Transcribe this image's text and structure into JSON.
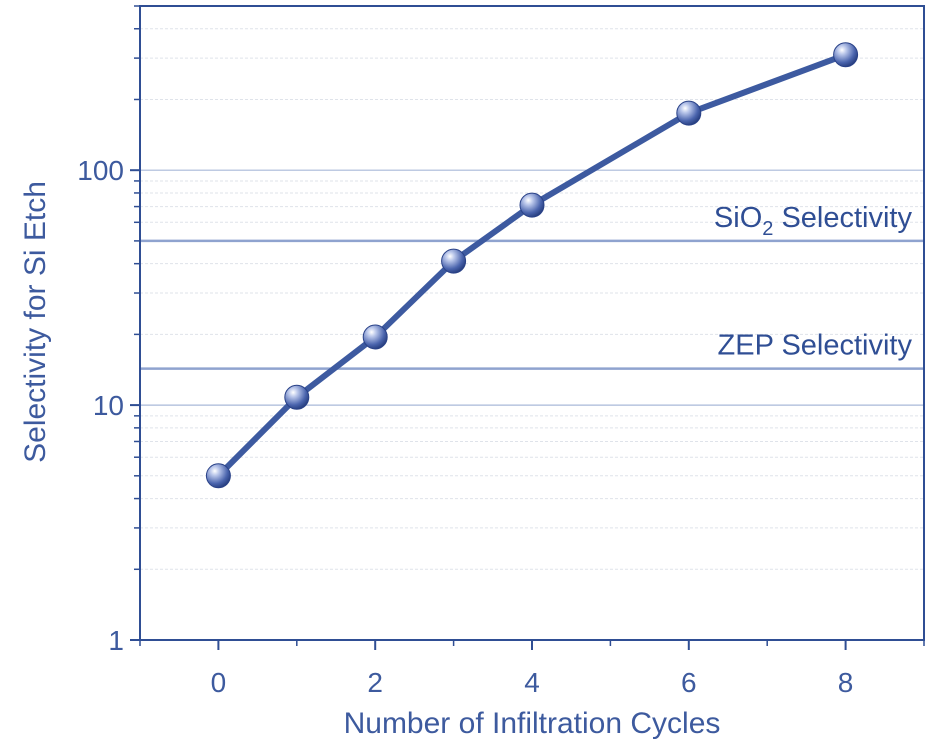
{
  "chart_data": {
    "type": "line",
    "title": "",
    "xlabel": "Number of Infiltration Cycles",
    "ylabel": "Selectivity for Si Etch",
    "y_scale": "log",
    "xlim": [
      -1,
      9
    ],
    "ylim": [
      1,
      500
    ],
    "x_ticks": [
      0,
      2,
      4,
      6,
      8
    ],
    "x_tick_labels": [
      "0",
      "2",
      "4",
      "6",
      "8"
    ],
    "y_ticks": [
      1,
      10,
      100
    ],
    "y_tick_labels": [
      "1",
      "10",
      "100"
    ],
    "grid": true,
    "series": [
      {
        "x": [
          0,
          1,
          2,
          3,
          4,
          6,
          8
        ],
        "y": [
          5,
          10.8,
          19.5,
          41,
          71,
          175,
          310
        ]
      }
    ],
    "reference_lines": [
      {
        "label_main": "SiO",
        "label_sub": "2",
        "label_rest": " Selectivity",
        "y": 50
      },
      {
        "label_main": "ZEP Selectivity",
        "label_sub": "",
        "label_rest": "",
        "y": 14.3
      }
    ],
    "colors": {
      "axis": "#2f4e94",
      "series": "#3d5aa0",
      "text": "#3d5a9e",
      "ref_line": "#8fa3cf",
      "grid": "#dfe3ea"
    }
  }
}
